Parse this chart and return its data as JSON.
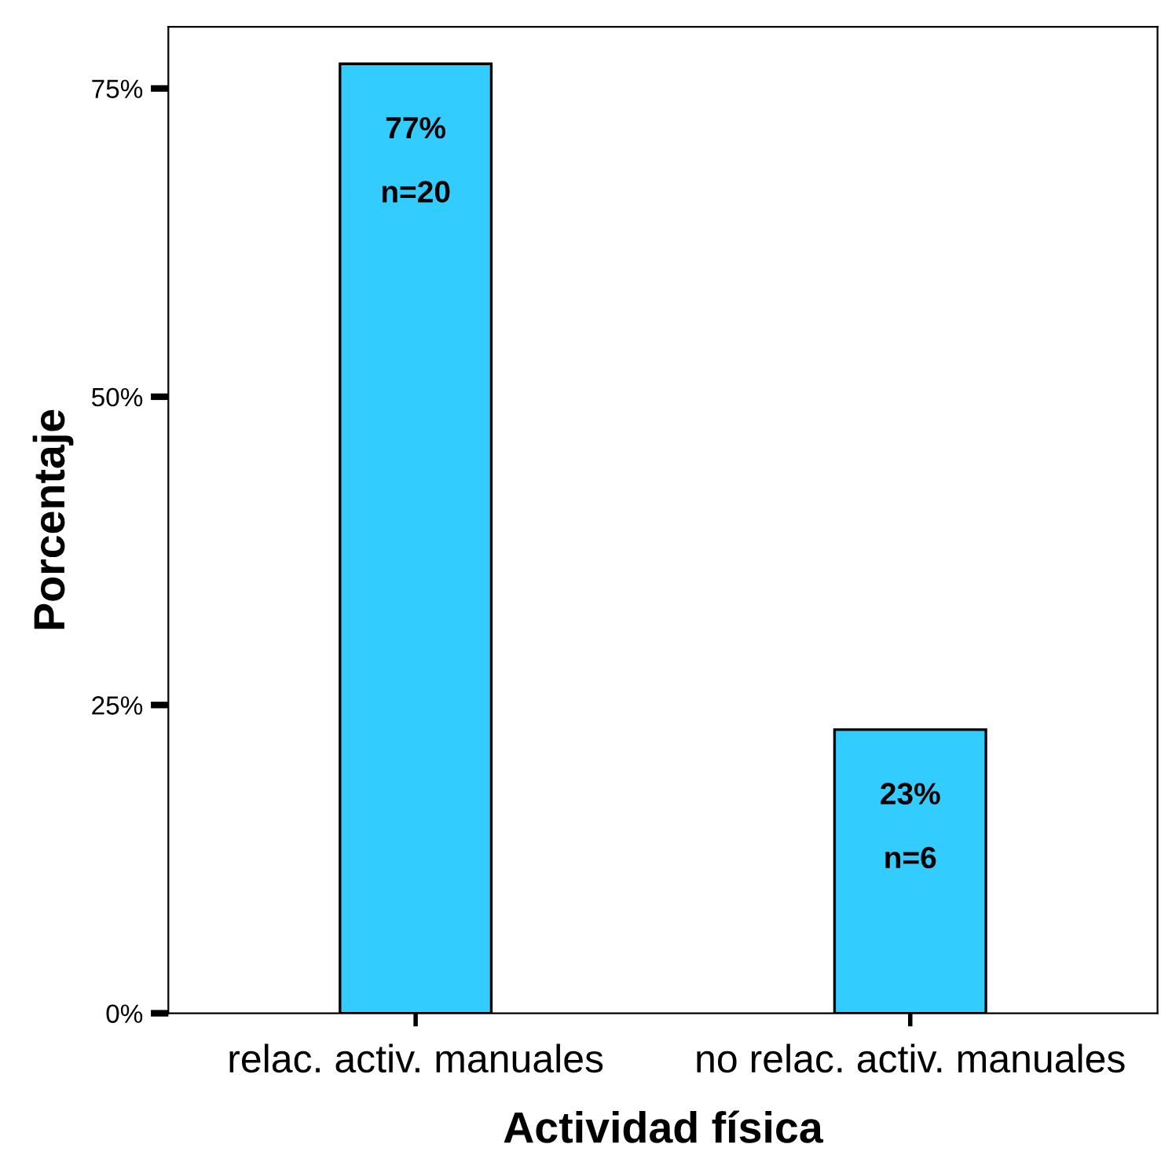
{
  "chart_data": {
    "type": "bar",
    "xlabel": "Actividad física",
    "ylabel": "Porcentaje",
    "categories": [
      "relac. activ. manuales",
      "no relac. activ. manuales"
    ],
    "values": [
      77,
      23
    ],
    "color": "#33ccff",
    "value_labels": [
      "77%\nn=20",
      "23%\nn=6"
    ],
    "ylim": [
      0,
      80
    ],
    "yticks": [
      {
        "value": 0,
        "label": "0%"
      },
      {
        "value": 25,
        "label": "25%"
      },
      {
        "value": 50,
        "label": "50%"
      },
      {
        "value": 75,
        "label": "75%"
      }
    ],
    "grid": false,
    "legend": false
  }
}
